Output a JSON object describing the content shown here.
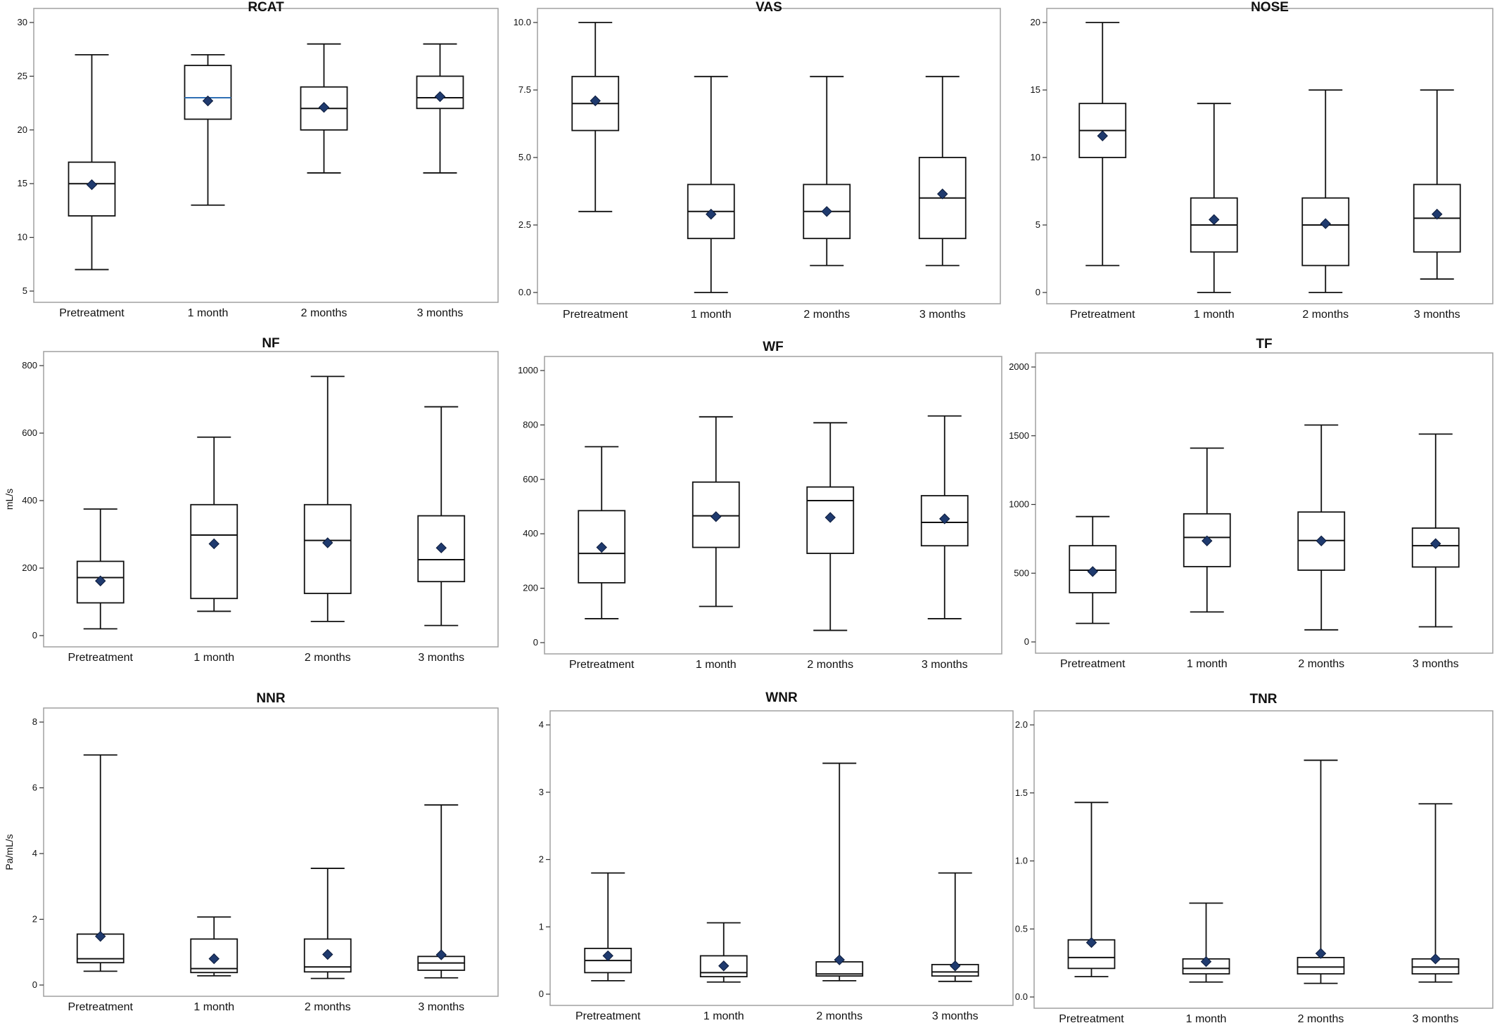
{
  "figure": {
    "background": "#ffffff"
  },
  "style": {
    "frame_color": "#a0a0a0",
    "box_color": "#111111",
    "mean_fill": "#1f3a6e",
    "highlight_median": "#2f6fb5"
  },
  "chart_data": [
    {
      "id": "RCAT",
      "type": "boxplot",
      "title": "RCAT",
      "ylabel": "",
      "categories": [
        "Pretreatment",
        "1 month",
        "2 months",
        "3 months"
      ],
      "ylim": [
        5,
        30
      ],
      "yticks": [
        5,
        10,
        15,
        20,
        25,
        30
      ],
      "ytick_labels": [
        "5",
        "10",
        "15",
        "20",
        "25",
        "30"
      ],
      "boxes": [
        {
          "min": 7,
          "q1": 12,
          "median": 15,
          "q3": 17,
          "max": 27,
          "mean": 14.9
        },
        {
          "min": 13,
          "q1": 21,
          "median": 23,
          "q3": 26,
          "max": 27,
          "mean": 22.7,
          "median_color": "#2f6fb5"
        },
        {
          "min": 16,
          "q1": 20,
          "median": 22,
          "q3": 24,
          "max": 28,
          "mean": 22.1
        },
        {
          "min": 16,
          "q1": 22,
          "median": 23,
          "q3": 25,
          "max": 28,
          "mean": 23.1
        }
      ]
    },
    {
      "id": "VAS",
      "type": "boxplot",
      "title": "VAS",
      "ylabel": "",
      "categories": [
        "Pretreatment",
        "1 month",
        "2 months",
        "3 months"
      ],
      "ylim": [
        0,
        10
      ],
      "yticks": [
        0,
        2.5,
        5,
        7.5,
        10
      ],
      "ytick_labels": [
        "0.0",
        "2.5",
        "5.0",
        "7.5",
        "10.0"
      ],
      "boxes": [
        {
          "min": 3,
          "q1": 6,
          "median": 7,
          "q3": 8,
          "max": 10,
          "mean": 7.1
        },
        {
          "min": 0,
          "q1": 2,
          "median": 3,
          "q3": 4,
          "max": 8,
          "mean": 2.9
        },
        {
          "min": 1,
          "q1": 2,
          "median": 3,
          "q3": 4,
          "max": 8,
          "mean": 3.0
        },
        {
          "min": 1,
          "q1": 2,
          "median": 3.5,
          "q3": 5,
          "max": 8,
          "mean": 3.65
        }
      ]
    },
    {
      "id": "NOSE",
      "type": "boxplot",
      "title": "NOSE",
      "ylabel": "",
      "categories": [
        "Pretreatment",
        "1 month",
        "2 months",
        "3 months"
      ],
      "ylim": [
        0,
        20
      ],
      "yticks": [
        0,
        5,
        10,
        15,
        20
      ],
      "ytick_labels": [
        "0",
        "5",
        "10",
        "15",
        "20"
      ],
      "boxes": [
        {
          "min": 2,
          "q1": 10,
          "median": 12,
          "q3": 14,
          "max": 20,
          "mean": 11.6
        },
        {
          "min": 0,
          "q1": 3,
          "median": 5,
          "q3": 7,
          "max": 14,
          "mean": 5.4
        },
        {
          "min": 0,
          "q1": 2,
          "median": 5,
          "q3": 7,
          "max": 15,
          "mean": 5.1
        },
        {
          "min": 1,
          "q1": 3,
          "median": 5.5,
          "q3": 8,
          "max": 15,
          "mean": 5.8
        }
      ]
    },
    {
      "id": "NF",
      "type": "boxplot",
      "title": "NF",
      "ylabel": "mL/s",
      "categories": [
        "Pretreatment",
        "1 month",
        "2 months",
        "3 months"
      ],
      "ylim": [
        0,
        800
      ],
      "yticks": [
        0,
        200,
        400,
        600,
        800
      ],
      "ytick_labels": [
        "0",
        "200",
        "400",
        "600",
        "800"
      ],
      "boxes": [
        {
          "min": 20,
          "q1": 97,
          "median": 172,
          "q3": 220,
          "max": 375,
          "mean": 162
        },
        {
          "min": 72,
          "q1": 110,
          "median": 298,
          "q3": 388,
          "max": 588,
          "mean": 272
        },
        {
          "min": 42,
          "q1": 125,
          "median": 282,
          "q3": 388,
          "max": 768,
          "mean": 275
        },
        {
          "min": 30,
          "q1": 160,
          "median": 225,
          "q3": 355,
          "max": 678,
          "mean": 260
        }
      ]
    },
    {
      "id": "WF",
      "type": "boxplot",
      "title": "WF",
      "ylabel": "",
      "categories": [
        "Pretreatment",
        "1 month",
        "2 months",
        "3 months"
      ],
      "ylim": [
        0,
        1000
      ],
      "yticks": [
        0,
        200,
        400,
        600,
        800,
        1000
      ],
      "ytick_labels": [
        "0",
        "200",
        "400",
        "600",
        "800",
        "1000"
      ],
      "boxes": [
        {
          "min": 88,
          "q1": 220,
          "median": 328,
          "q3": 485,
          "max": 720,
          "mean": 350
        },
        {
          "min": 133,
          "q1": 350,
          "median": 466,
          "q3": 590,
          "max": 830,
          "mean": 463
        },
        {
          "min": 45,
          "q1": 328,
          "median": 522,
          "q3": 572,
          "max": 808,
          "mean": 460
        },
        {
          "min": 88,
          "q1": 356,
          "median": 442,
          "q3": 540,
          "max": 833,
          "mean": 455
        }
      ]
    },
    {
      "id": "TF",
      "type": "boxplot",
      "title": "TF",
      "ylabel": "",
      "categories": [
        "Pretreatment",
        "1 month",
        "2 months",
        "3 months"
      ],
      "ylim": [
        0,
        2000
      ],
      "yticks": [
        0,
        500,
        1000,
        1500,
        2000
      ],
      "ytick_labels": [
        "0",
        "500",
        "1000",
        "1500",
        "2000"
      ],
      "boxes": [
        {
          "min": 135,
          "q1": 358,
          "median": 522,
          "q3": 700,
          "max": 912,
          "mean": 512
        },
        {
          "min": 218,
          "q1": 548,
          "median": 760,
          "q3": 932,
          "max": 1410,
          "mean": 735
        },
        {
          "min": 88,
          "q1": 522,
          "median": 738,
          "q3": 945,
          "max": 1578,
          "mean": 735
        },
        {
          "min": 110,
          "q1": 545,
          "median": 700,
          "q3": 828,
          "max": 1512,
          "mean": 715
        }
      ]
    },
    {
      "id": "NNR",
      "type": "boxplot",
      "title": "NNR",
      "ylabel": "Pa/mL/s",
      "categories": [
        "Pretreatment",
        "1 month",
        "2 months",
        "3 months"
      ],
      "ylim": [
        0,
        8
      ],
      "yticks": [
        0,
        2,
        4,
        6,
        8
      ],
      "ytick_labels": [
        "0",
        "2",
        "4",
        "6",
        "8"
      ],
      "boxes": [
        {
          "min": 0.42,
          "q1": 0.68,
          "median": 0.8,
          "q3": 1.55,
          "max": 7.0,
          "mean": 1.48
        },
        {
          "min": 0.28,
          "q1": 0.38,
          "median": 0.5,
          "q3": 1.4,
          "max": 2.07,
          "mean": 0.8
        },
        {
          "min": 0.2,
          "q1": 0.4,
          "median": 0.55,
          "q3": 1.4,
          "max": 3.55,
          "mean": 0.93
        },
        {
          "min": 0.22,
          "q1": 0.45,
          "median": 0.67,
          "q3": 0.87,
          "max": 5.48,
          "mean": 0.92
        }
      ]
    },
    {
      "id": "WNR",
      "type": "boxplot",
      "title": "WNR",
      "ylabel": "",
      "categories": [
        "Pretreatment",
        "1 month",
        "2 months",
        "3 months"
      ],
      "ylim": [
        0,
        4
      ],
      "yticks": [
        0,
        1,
        2,
        3,
        4
      ],
      "ytick_labels": [
        "0",
        "1",
        "2",
        "3",
        "4"
      ],
      "boxes": [
        {
          "min": 0.2,
          "q1": 0.32,
          "median": 0.5,
          "q3": 0.68,
          "max": 1.8,
          "mean": 0.57
        },
        {
          "min": 0.18,
          "q1": 0.26,
          "median": 0.32,
          "q3": 0.57,
          "max": 1.06,
          "mean": 0.42
        },
        {
          "min": 0.2,
          "q1": 0.27,
          "median": 0.3,
          "q3": 0.48,
          "max": 3.43,
          "mean": 0.51
        },
        {
          "min": 0.19,
          "q1": 0.27,
          "median": 0.33,
          "q3": 0.44,
          "max": 1.8,
          "mean": 0.42
        }
      ]
    },
    {
      "id": "TNR",
      "type": "boxplot",
      "title": "TNR",
      "ylabel": "",
      "categories": [
        "Pretreatment",
        "1 month",
        "2 months",
        "3 months"
      ],
      "ylim": [
        0,
        2
      ],
      "yticks": [
        0,
        0.5,
        1,
        1.5,
        2
      ],
      "ytick_labels": [
        "0.0",
        "0.5",
        "1.0",
        "1.5",
        "2.0"
      ],
      "boxes": [
        {
          "min": 0.15,
          "q1": 0.21,
          "median": 0.29,
          "q3": 0.42,
          "max": 1.43,
          "mean": 0.4
        },
        {
          "min": 0.11,
          "q1": 0.17,
          "median": 0.21,
          "q3": 0.28,
          "max": 0.69,
          "mean": 0.26
        },
        {
          "min": 0.1,
          "q1": 0.17,
          "median": 0.22,
          "q3": 0.29,
          "max": 1.74,
          "mean": 0.32
        },
        {
          "min": 0.11,
          "q1": 0.17,
          "median": 0.22,
          "q3": 0.28,
          "max": 1.42,
          "mean": 0.28
        }
      ]
    }
  ]
}
